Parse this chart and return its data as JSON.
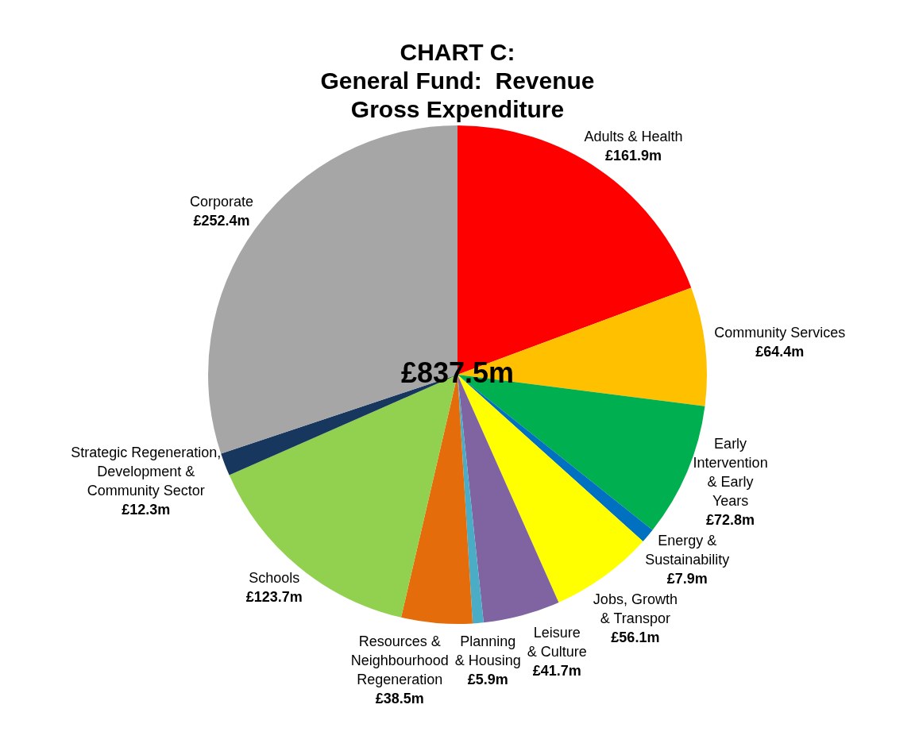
{
  "chart_data": {
    "type": "pie",
    "title": "CHART C:\nGeneral Fund:  Revenue\nGross Expenditure",
    "categories": [
      "Adults & Health",
      "Community Services",
      "Early\nIntervention\n& Early\nYears",
      "Energy &\nSustainability",
      "Jobs, Growth\n& Transpor",
      "Leisure\n& Culture",
      "Planning\n& Housing",
      "Resources &\nNeighbourhood\nRegeneration",
      "Schools",
      "Strategic Regeneration,\nDevelopment &\nCommunity Sector",
      "Corporate"
    ],
    "values": [
      161.9,
      64.4,
      72.8,
      7.9,
      56.1,
      41.7,
      5.9,
      38.5,
      123.7,
      12.3,
      252.4
    ],
    "value_labels": [
      "£161.9m",
      "£64.4m",
      "£72.8m",
      "£7.9m",
      "£56.1m",
      "£41.7m",
      "£5.9m",
      "£38.5m",
      "£123.7m",
      "£12.3m",
      "£252.4m"
    ],
    "colors": [
      "#ff0000",
      "#ffc000",
      "#00b050",
      "#0070c0",
      "#ffff00",
      "#8064a2",
      "#4bacc6",
      "#e46c0a",
      "#92d050",
      "#17375e",
      "#a6a6a6"
    ],
    "legend": false,
    "annotations": [
      "£837.5m"
    ]
  }
}
